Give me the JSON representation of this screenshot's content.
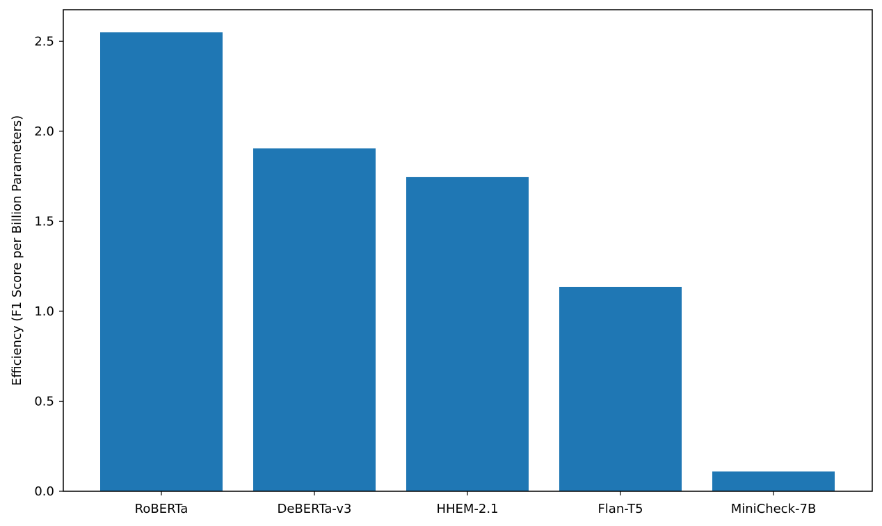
{
  "chart_data": {
    "type": "bar",
    "title": "",
    "xlabel": "",
    "ylabel": "Efficiency (F1 Score per Billion Parameters)",
    "categories": [
      "RoBERTa",
      "DeBERTa-v3",
      "HHEM-2.1",
      "Flan-T5",
      "MiniCheck-7B"
    ],
    "values": [
      2.55,
      1.905,
      1.745,
      1.135,
      0.11
    ],
    "ylim": [
      0,
      2.675
    ],
    "yticks": [
      0.0,
      0.5,
      1.0,
      1.5,
      2.0,
      2.5
    ],
    "ytick_labels": [
      "0.0",
      "0.5",
      "1.0",
      "1.5",
      "2.0",
      "2.5"
    ],
    "grid": false,
    "legend": "none",
    "bar_color": "#1f77b4"
  }
}
